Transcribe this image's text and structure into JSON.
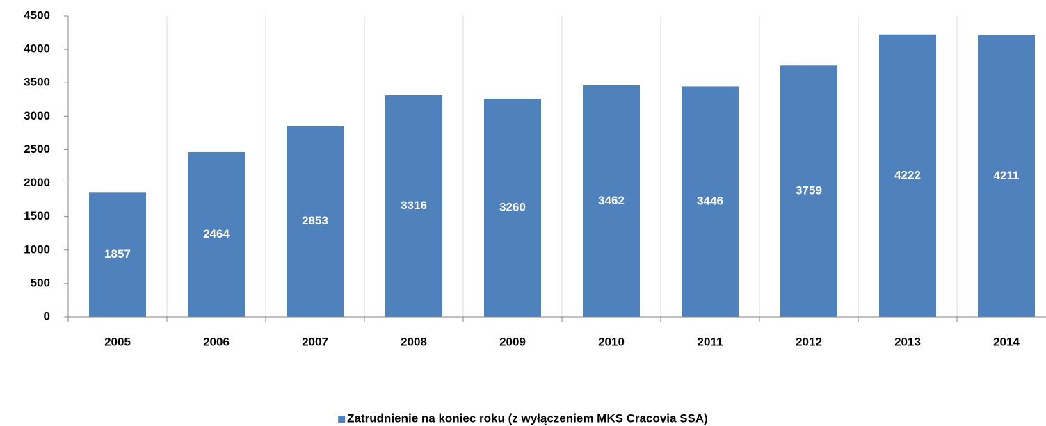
{
  "chart_data": {
    "type": "bar",
    "categories": [
      "2005",
      "2006",
      "2007",
      "2008",
      "2009",
      "2010",
      "2011",
      "2012",
      "2013",
      "2014"
    ],
    "series": [
      {
        "name": "Zatrudnienie na koniec roku (z wyłączeniem MKS Cracovia SSA)",
        "color": "#4f81bd",
        "values": [
          1857,
          2464,
          2853,
          3316,
          3260,
          3462,
          3446,
          3759,
          4222,
          4211
        ]
      }
    ],
    "ylim": [
      0,
      4500
    ],
    "yticks": [
      0,
      500,
      1000,
      1500,
      2000,
      2500,
      3000,
      3500,
      4000,
      4500
    ],
    "grid": true,
    "legend": "bottom"
  }
}
